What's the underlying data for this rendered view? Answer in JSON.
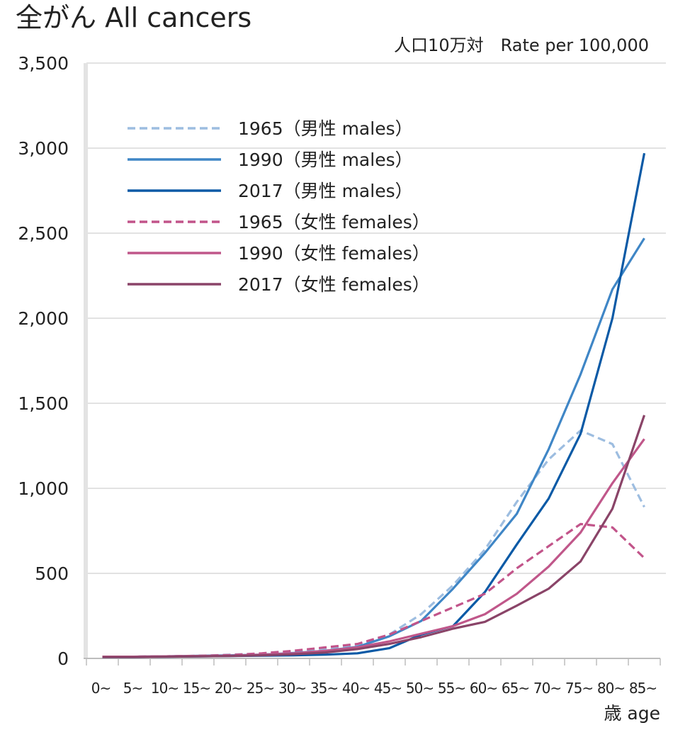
{
  "chart_data": {
    "type": "line",
    "title": "全がん All cancers",
    "unit_label": "人口10万対　Rate per 100,000",
    "xlabel": "歳 age",
    "ylim": [
      0,
      3500
    ],
    "yticks": [
      0,
      500,
      1000,
      1500,
      2000,
      2500,
      3000,
      3500
    ],
    "ytick_labels": [
      "0",
      "500",
      "1,000",
      "1,500",
      "2,000",
      "2,500",
      "3,000",
      "3,500"
    ],
    "grid": true,
    "legend_position": "top-left",
    "categories": [
      "0~",
      "5~",
      "10~",
      "15~",
      "20~",
      "25~",
      "30~",
      "35~",
      "40~",
      "45~",
      "50~",
      "55~",
      "60~",
      "65~",
      "70~",
      "75~",
      "80~",
      "85~"
    ],
    "series": [
      {
        "name": "1965（男性 males）",
        "color": "#9dbde0",
        "dash": "dashed",
        "values": [
          10,
          10,
          12,
          15,
          22,
          28,
          38,
          55,
          78,
          140,
          260,
          430,
          640,
          920,
          1170,
          1340,
          1260,
          890
        ]
      },
      {
        "name": "1990（男性 males）",
        "color": "#3f86c6",
        "dash": "solid",
        "values": [
          10,
          10,
          12,
          15,
          18,
          22,
          32,
          45,
          68,
          130,
          220,
          410,
          620,
          850,
          1230,
          1670,
          2170,
          2470
        ]
      },
      {
        "name": "2017（男性 males）",
        "color": "#0b5aa6",
        "dash": "solid",
        "values": [
          8,
          8,
          10,
          12,
          14,
          16,
          18,
          22,
          30,
          60,
          140,
          190,
          390,
          670,
          940,
          1320,
          2000,
          2970
        ]
      },
      {
        "name": "1965（女性 females）",
        "color": "#c2548a",
        "dash": "dashed",
        "values": [
          10,
          10,
          12,
          15,
          20,
          30,
          45,
          65,
          85,
          140,
          220,
          300,
          380,
          530,
          660,
          790,
          770,
          590
        ]
      },
      {
        "name": "1990（女性 females）",
        "color": "#c0578a",
        "dash": "solid",
        "values": [
          10,
          10,
          12,
          14,
          16,
          22,
          30,
          45,
          65,
          100,
          145,
          190,
          260,
          380,
          540,
          740,
          1030,
          1290
        ]
      },
      {
        "name": "2017（女性 females）",
        "color": "#8a4468",
        "dash": "solid",
        "values": [
          8,
          8,
          10,
          12,
          14,
          18,
          24,
          35,
          55,
          85,
          125,
          175,
          215,
          310,
          410,
          570,
          880,
          1430
        ]
      }
    ]
  }
}
